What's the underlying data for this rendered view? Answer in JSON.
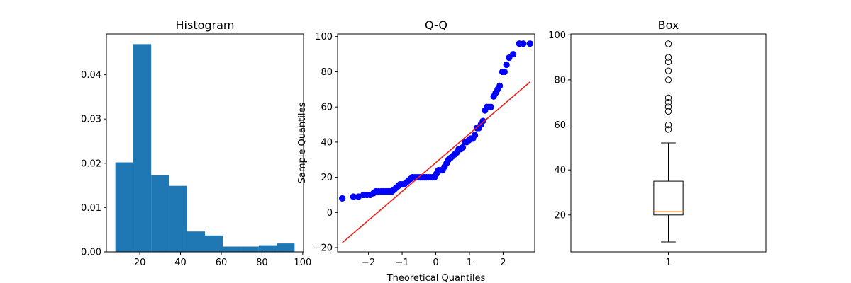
{
  "chart_data": [
    {
      "type": "bar",
      "title": "Histogram",
      "xlabel": "",
      "ylabel": "",
      "bin_edges": [
        8.0,
        16.8,
        25.6,
        34.4,
        43.2,
        52.0,
        60.8,
        69.6,
        78.4,
        87.2,
        96.0
      ],
      "values": [
        0.0202,
        0.0469,
        0.0173,
        0.0149,
        0.0046,
        0.0037,
        0.0012,
        0.0012,
        0.0015,
        0.0019
      ],
      "xlim": [
        3.6,
        100.4
      ],
      "ylim": [
        0,
        0.0492
      ],
      "xticks": [
        20,
        40,
        60,
        80,
        100
      ],
      "yticks": [
        0.0,
        0.01,
        0.02,
        0.03,
        0.04
      ],
      "ytick_labels": [
        "0.00",
        "0.01",
        "0.02",
        "0.03",
        "0.04"
      ],
      "xtick_labels": [
        "20",
        "40",
        "60",
        "80",
        "100"
      ],
      "color": "#1f77b4",
      "grid": false
    },
    {
      "type": "scatter",
      "title": "Q-Q",
      "xlabel": "Theoretical Quantiles",
      "ylabel": "Sample Quantiles",
      "points": [
        [
          -2.78,
          8
        ],
        [
          -2.45,
          9
        ],
        [
          -2.3,
          9
        ],
        [
          -2.15,
          10
        ],
        [
          -2.05,
          10
        ],
        [
          -1.95,
          10
        ],
        [
          -1.85,
          11
        ],
        [
          -1.78,
          12
        ],
        [
          -1.7,
          12
        ],
        [
          -1.62,
          12
        ],
        [
          -1.55,
          12
        ],
        [
          -1.48,
          12
        ],
        [
          -1.42,
          12
        ],
        [
          -1.36,
          12
        ],
        [
          -1.3,
          12
        ],
        [
          -1.24,
          13
        ],
        [
          -1.18,
          14
        ],
        [
          -1.12,
          15
        ],
        [
          -1.06,
          16
        ],
        [
          -1.0,
          16
        ],
        [
          -0.94,
          16
        ],
        [
          -0.88,
          17
        ],
        [
          -0.82,
          18
        ],
        [
          -0.76,
          19
        ],
        [
          -0.7,
          20
        ],
        [
          -0.64,
          20
        ],
        [
          -0.58,
          20
        ],
        [
          -0.52,
          20
        ],
        [
          -0.46,
          20
        ],
        [
          -0.4,
          20
        ],
        [
          -0.34,
          20
        ],
        [
          -0.28,
          20
        ],
        [
          -0.22,
          20
        ],
        [
          -0.16,
          20
        ],
        [
          -0.1,
          20
        ],
        [
          -0.04,
          20
        ],
        [
          0.02,
          22
        ],
        [
          0.08,
          24
        ],
        [
          0.14,
          24
        ],
        [
          0.2,
          24
        ],
        [
          0.26,
          26
        ],
        [
          0.32,
          28
        ],
        [
          0.38,
          30
        ],
        [
          0.44,
          31
        ],
        [
          0.5,
          32
        ],
        [
          0.56,
          33
        ],
        [
          0.62,
          34
        ],
        [
          0.68,
          36
        ],
        [
          0.74,
          36
        ],
        [
          0.8,
          37
        ],
        [
          0.86,
          40
        ],
        [
          0.92,
          40
        ],
        [
          0.98,
          41
        ],
        [
          1.04,
          42
        ],
        [
          1.1,
          42
        ],
        [
          1.16,
          44
        ],
        [
          1.22,
          48
        ],
        [
          1.28,
          48
        ],
        [
          1.34,
          50
        ],
        [
          1.4,
          52
        ],
        [
          1.46,
          58
        ],
        [
          1.52,
          60
        ],
        [
          1.58,
          60
        ],
        [
          1.64,
          60
        ],
        [
          1.72,
          66
        ],
        [
          1.78,
          68
        ],
        [
          1.84,
          70
        ],
        [
          1.9,
          72
        ],
        [
          1.98,
          80
        ],
        [
          2.04,
          80
        ],
        [
          2.1,
          84
        ],
        [
          2.18,
          88
        ],
        [
          2.3,
          90
        ],
        [
          2.48,
          96
        ],
        [
          2.6,
          96
        ],
        [
          2.8,
          96
        ]
      ],
      "line": [
        [
          -2.78,
          -17.2
        ],
        [
          2.8,
          74.2
        ]
      ],
      "xlim": [
        -2.92,
        2.94
      ],
      "ylim": [
        -22.4,
        101.5
      ],
      "xticks": [
        -2,
        -1,
        0,
        1,
        2
      ],
      "xtick_labels": [
        "−2",
        "−1",
        "0",
        "1",
        "2"
      ],
      "yticks": [
        -20,
        0,
        20,
        40,
        60,
        80,
        100
      ],
      "ytick_labels": [
        "−20",
        "0",
        "20",
        "40",
        "60",
        "80",
        "100"
      ],
      "point_color": "#0000ff",
      "line_color": "#e8221e",
      "grid": false
    },
    {
      "type": "box",
      "title": "Box",
      "xlabel": "",
      "ylabel": "",
      "category": "1",
      "min": 8,
      "q1": 20,
      "median": 21.5,
      "q3": 35,
      "whisker_high": 52,
      "outliers": [
        58,
        60,
        66,
        68,
        70,
        72,
        80,
        84,
        88,
        90,
        96
      ],
      "xlim": [
        0.5,
        1.5
      ],
      "ylim": [
        3.6,
        100.4
      ],
      "yticks": [
        20,
        40,
        60,
        80,
        100
      ],
      "ytick_labels": [
        "20",
        "40",
        "60",
        "80",
        "100"
      ],
      "xticks": [
        1
      ],
      "xtick_labels": [
        "1"
      ],
      "median_color": "#ff7f0e",
      "grid": false
    }
  ]
}
